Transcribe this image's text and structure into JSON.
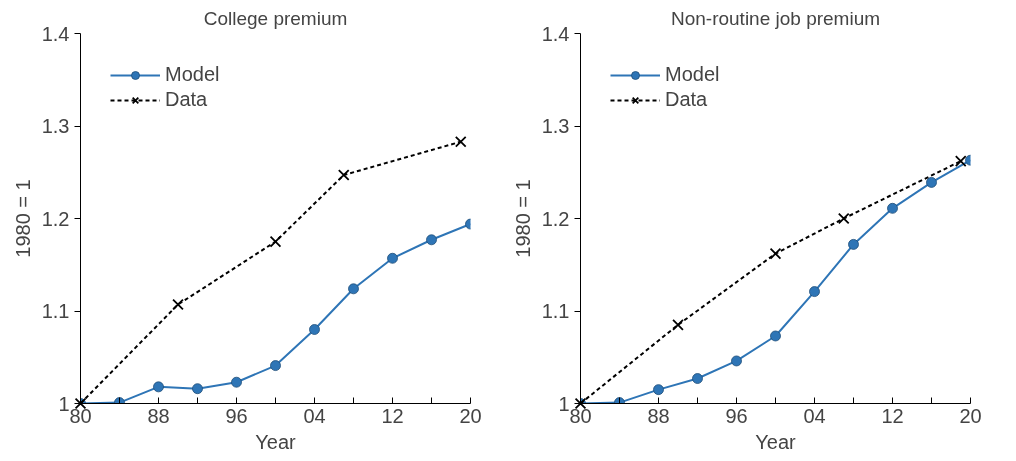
{
  "chart_data": [
    {
      "type": "line",
      "title": "College premium",
      "xlabel": "Year",
      "ylabel": "1980 = 1",
      "xlim": [
        1980,
        2020
      ],
      "ylim": [
        1,
        1.4
      ],
      "xticks": [
        {
          "value": 1980,
          "label": "80"
        },
        {
          "value": 1984,
          "label": null
        },
        {
          "value": 1988,
          "label": "88"
        },
        {
          "value": 1992,
          "label": null
        },
        {
          "value": 1996,
          "label": "96"
        },
        {
          "value": 2000,
          "label": null
        },
        {
          "value": 2004,
          "label": "04"
        },
        {
          "value": 2008,
          "label": null
        },
        {
          "value": 2012,
          "label": "12"
        },
        {
          "value": 2016,
          "label": null
        },
        {
          "value": 2020,
          "label": "20"
        }
      ],
      "yticks": [
        1,
        1.1,
        1.2,
        1.3,
        1.4
      ],
      "grid": false,
      "legend": "top left",
      "series": [
        {
          "name": "Model",
          "color": "#2e75b6",
          "marker": "circle",
          "line_style": "solid",
          "x": [
            1980,
            1984,
            1988,
            1992,
            1996,
            2000,
            2004,
            2008,
            2012,
            2016,
            2020
          ],
          "values": [
            1.0,
            1.001,
            1.018,
            1.016,
            1.023,
            1.041,
            1.08,
            1.124,
            1.157,
            1.177,
            1.194
          ]
        },
        {
          "name": "Data",
          "color": "#000000",
          "marker": "cross",
          "line_style": "dashed",
          "x": [
            1980,
            1990,
            2000,
            2007,
            2019
          ],
          "values": [
            1.0,
            1.107,
            1.175,
            1.247,
            1.283
          ]
        }
      ]
    },
    {
      "type": "line",
      "title": "Non-routine job premium",
      "xlabel": "Year",
      "ylabel": "1980 = 1",
      "xlim": [
        1980,
        2020
      ],
      "ylim": [
        1,
        1.4
      ],
      "xticks": [
        {
          "value": 1980,
          "label": "80"
        },
        {
          "value": 1984,
          "label": null
        },
        {
          "value": 1988,
          "label": "88"
        },
        {
          "value": 1992,
          "label": null
        },
        {
          "value": 1996,
          "label": "96"
        },
        {
          "value": 2000,
          "label": null
        },
        {
          "value": 2004,
          "label": "04"
        },
        {
          "value": 2008,
          "label": null
        },
        {
          "value": 2012,
          "label": "12"
        },
        {
          "value": 2016,
          "label": null
        },
        {
          "value": 2020,
          "label": "20"
        }
      ],
      "yticks": [
        1,
        1.1,
        1.2,
        1.3,
        1.4
      ],
      "grid": false,
      "legend": "top left",
      "series": [
        {
          "name": "Model",
          "color": "#2e75b6",
          "marker": "circle",
          "line_style": "solid",
          "x": [
            1980,
            1984,
            1988,
            1992,
            1996,
            2000,
            2004,
            2008,
            2012,
            2016,
            2020
          ],
          "values": [
            1.0,
            1.001,
            1.015,
            1.027,
            1.046,
            1.073,
            1.121,
            1.172,
            1.211,
            1.239,
            1.263
          ]
        },
        {
          "name": "Data",
          "color": "#000000",
          "marker": "cross",
          "line_style": "dashed",
          "x": [
            1980,
            1990,
            2000,
            2007,
            2019
          ],
          "values": [
            1.0,
            1.085,
            1.162,
            1.2,
            1.262
          ]
        }
      ]
    }
  ]
}
